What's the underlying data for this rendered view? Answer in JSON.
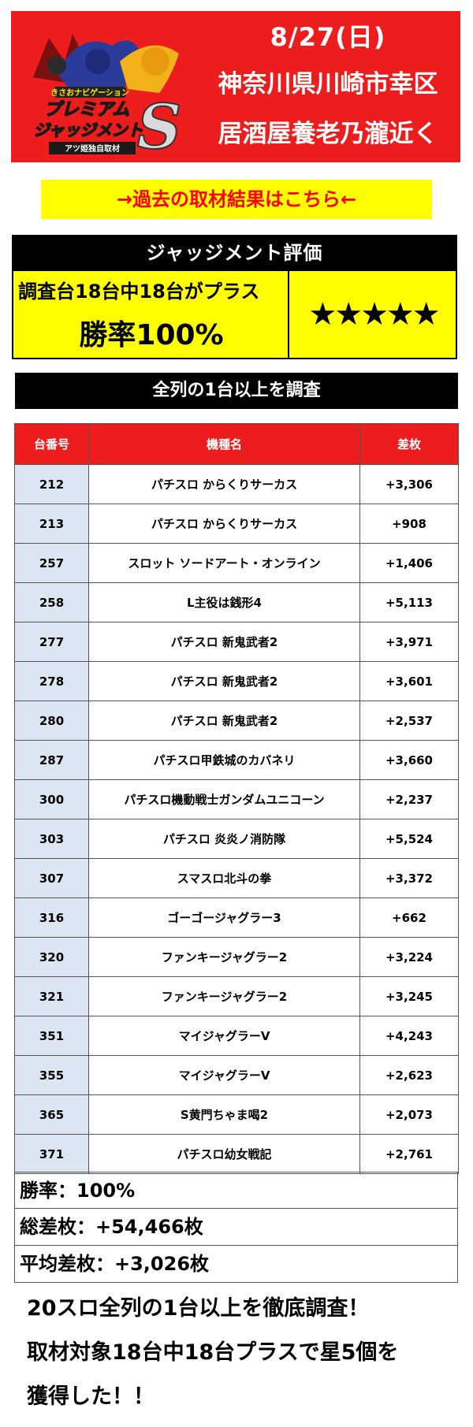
{
  "banner": {
    "logo_icon": "premium-judgement-s-logo",
    "logo_texts": [
      "きさおナビゲーション",
      "プレミアム",
      "ジャッジメント",
      "S",
      "アツ姫独自取材"
    ],
    "date": "8/27(日)",
    "line1": "神奈川県川崎市幸区",
    "line2": "居酒屋養老乃瀧近く"
  },
  "past_link": "→過去の取材結果はこちら←",
  "judgement": {
    "title": "ジャッジメント評価",
    "summary": "調査台18台中18台がプラス",
    "win_rate": "勝率100%",
    "stars": "★★★★★"
  },
  "survey_title": "全列の1台以上を調査",
  "table": {
    "headers": [
      "台番号",
      "機種名",
      "差枚"
    ],
    "rows": [
      {
        "no": "212",
        "name": "パチスロ からくりサーカス",
        "diff": "+3,306"
      },
      {
        "no": "213",
        "name": "パチスロ からくりサーカス",
        "diff": "+908"
      },
      {
        "no": "257",
        "name": "スロット ソードアート・オンライン",
        "diff": "+1,406"
      },
      {
        "no": "258",
        "name": "L主役は銭形4",
        "diff": "+5,113"
      },
      {
        "no": "277",
        "name": "パチスロ 新鬼武者2",
        "diff": "+3,971"
      },
      {
        "no": "278",
        "name": "パチスロ 新鬼武者2",
        "diff": "+3,601"
      },
      {
        "no": "280",
        "name": "パチスロ 新鬼武者2",
        "diff": "+2,537"
      },
      {
        "no": "287",
        "name": "パチスロ甲鉄城のカバネリ",
        "diff": "+3,660"
      },
      {
        "no": "300",
        "name": "パチスロ機動戦士ガンダムユニコーン",
        "diff": "+2,237"
      },
      {
        "no": "303",
        "name": "パチスロ 炎炎ノ消防隊",
        "diff": "+5,524"
      },
      {
        "no": "307",
        "name": "スマスロ北斗の拳",
        "diff": "+3,372"
      },
      {
        "no": "316",
        "name": "ゴーゴージャグラー3",
        "diff": "+662"
      },
      {
        "no": "320",
        "name": "ファンキージャグラー2",
        "diff": "+3,224"
      },
      {
        "no": "321",
        "name": "ファンキージャグラー2",
        "diff": "+3,245"
      },
      {
        "no": "351",
        "name": "マイジャグラーV",
        "diff": "+4,243"
      },
      {
        "no": "355",
        "name": "マイジャグラーV",
        "diff": "+2,623"
      },
      {
        "no": "365",
        "name": "S黄門ちゃま喝2",
        "diff": "+2,073"
      },
      {
        "no": "371",
        "name": "パチスロ幼女戦記",
        "diff": "+2,761"
      }
    ]
  },
  "summary": {
    "win_rate": "勝率：100%",
    "total": "総差枚：+54,466枚",
    "average": "平均差枚：+3,026枚"
  },
  "footer": {
    "line1": "20スロ全列の1台以上を徹底調査！",
    "line2": "取材対象18台中18台プラスで星5個を",
    "line3": "獲得した！！"
  },
  "colors": {
    "banner_red": "#ee1d1d",
    "link_yellow": "#ffff00",
    "link_text_red": "#ff0000",
    "number_column_blue": "#dce6f2"
  }
}
